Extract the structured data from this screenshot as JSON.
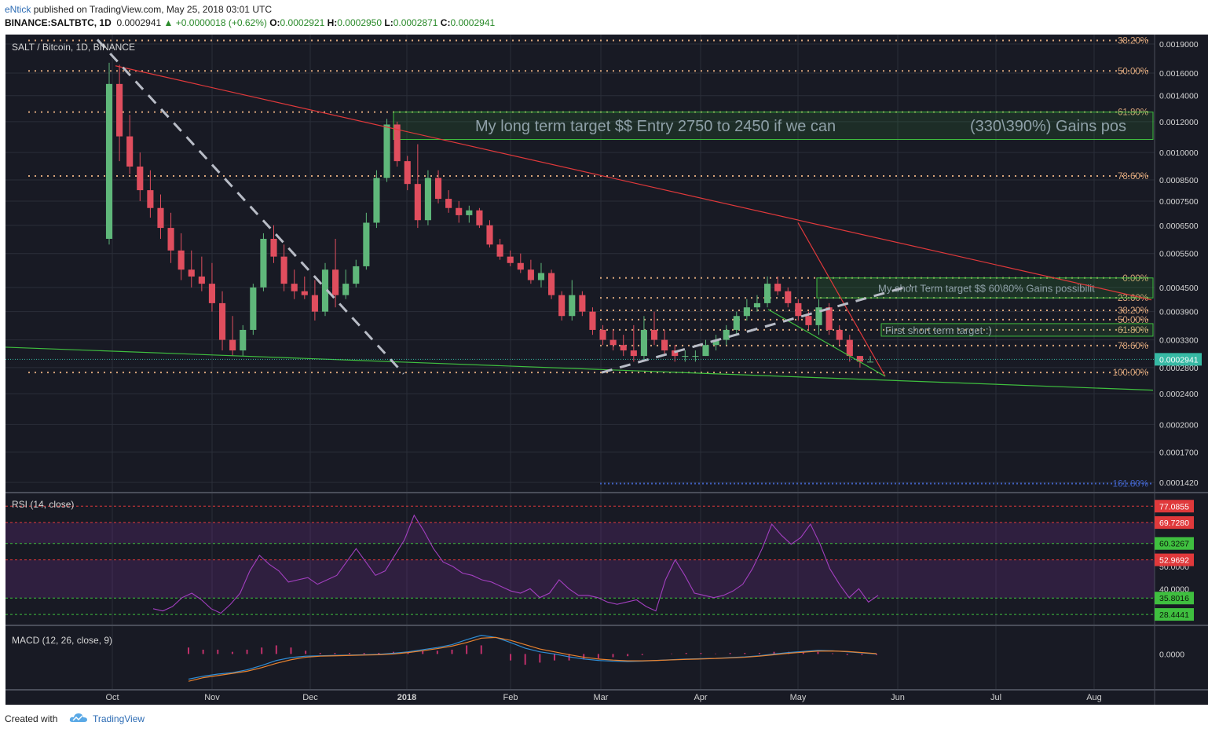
{
  "header": {
    "author": "eNtick",
    "published_text": "published on TradingView.com, May 25, 2018 03:01 UTC",
    "symbol": "BINANCE:SALTBTC, 1D",
    "last": "0.0002941",
    "change": "+0.0000018 (+0.62%)",
    "o_label": "O:",
    "o": "0.0002921",
    "h_label": "H:",
    "h": "0.0002950",
    "l_label": "L:",
    "l": "0.0002871",
    "c_label": "C:",
    "c": "0.0002941"
  },
  "footer": {
    "created_with": "Created with",
    "brand": "TradingView"
  },
  "colors": {
    "background": "#181a24",
    "grid": "#2a2e39",
    "candle_up": "#5fb77a",
    "candle_down": "#e04e5e",
    "fib_line": "#d8a47a",
    "trend_red": "#e0393b",
    "trend_green": "#3fbf3f",
    "target_box": "#3fbf3f",
    "rsi_line": "#a23fbf",
    "macd_line": "#2f8ed6",
    "signal_line": "#e8822f",
    "histogram": "#c0306a"
  },
  "chart_data": [
    {
      "type": "candlestick",
      "title": "SALT / Bitcoin, 1D, BINANCE",
      "x_ticks": [
        "Oct",
        "Nov",
        "Dec",
        "2018",
        "Feb",
        "Mar",
        "Apr",
        "May",
        "Jun",
        "Jul",
        "Aug"
      ],
      "y_scale": "log",
      "y_ticks": [
        "0.0019000",
        "0.0016000",
        "0.0014000",
        "0.0012000",
        "0.0010000",
        "0.0008500",
        "0.0007500",
        "0.0006500",
        "0.0005500",
        "0.0004500",
        "0.0003900",
        "0.0003300",
        "0.0002800",
        "0.0002400",
        "0.0002000",
        "0.0001700",
        "0.0001420"
      ],
      "last_price_label": "0.0002941",
      "fib_left": [
        {
          "label": "38.20%",
          "price": 0.00194
        },
        {
          "label": "50.00%",
          "price": 0.00162
        },
        {
          "label": "61.80%",
          "price": 0.00127
        },
        {
          "label": "78.60%",
          "price": 0.00087
        },
        {
          "label": "100.00%",
          "price": 0.000272
        }
      ],
      "fib_right": [
        {
          "label": "0.00%",
          "price": 0.000476
        },
        {
          "label": "23.60%",
          "price": 0.000423
        },
        {
          "label": "38.20%",
          "price": 0.000393
        },
        {
          "label": "50.00%",
          "price": 0.000372
        },
        {
          "label": "61.80%",
          "price": 0.00035
        },
        {
          "label": "78.60%",
          "price": 0.000319
        },
        {
          "label": "161.80%",
          "price": 0.000141
        }
      ],
      "annotations": {
        "long_term": "My long term target  $$ Entry 2750 to 2450 if we can",
        "long_term_gains": "(330\\390%) Gains pos",
        "short_term": "My short Term target  $$ 60\\80% Gains possibilit",
        "first_short": "First short term target :)"
      },
      "ohlc": [
        [
          0.0006,
          0.0017,
          0.00058,
          0.0015
        ],
        [
          0.0015,
          0.00168,
          0.00095,
          0.0011
        ],
        [
          0.0011,
          0.00125,
          0.00088,
          0.00092
        ],
        [
          0.00092,
          0.001,
          0.00075,
          0.0008
        ],
        [
          0.0008,
          0.0009,
          0.00068,
          0.00072
        ],
        [
          0.00072,
          0.00078,
          0.0006,
          0.00064
        ],
        [
          0.00064,
          0.0007,
          0.00052,
          0.00056
        ],
        [
          0.00056,
          0.00062,
          0.00047,
          0.0005
        ],
        [
          0.0005,
          0.00056,
          0.00045,
          0.00048
        ],
        [
          0.00048,
          0.00054,
          0.00044,
          0.00046
        ],
        [
          0.00046,
          0.00052,
          0.00039,
          0.00041
        ],
        [
          0.00041,
          0.00044,
          0.00031,
          0.00033
        ],
        [
          0.00033,
          0.00038,
          0.0003,
          0.00031
        ],
        [
          0.00031,
          0.00036,
          0.0003,
          0.00035
        ],
        [
          0.00035,
          0.00046,
          0.00034,
          0.00045
        ],
        [
          0.00045,
          0.00062,
          0.00044,
          0.0006
        ],
        [
          0.0006,
          0.00065,
          0.00052,
          0.00054
        ],
        [
          0.00054,
          0.00058,
          0.00044,
          0.00046
        ],
        [
          0.00046,
          0.0005,
          0.00042,
          0.00044
        ],
        [
          0.00044,
          0.00048,
          0.00042,
          0.00043
        ],
        [
          0.00043,
          0.00047,
          0.00037,
          0.00039
        ],
        [
          0.00039,
          0.00052,
          0.00038,
          0.0005
        ],
        [
          0.0005,
          0.0006,
          0.0004,
          0.00043
        ],
        [
          0.00043,
          0.0005,
          0.00042,
          0.00046
        ],
        [
          0.00046,
          0.00053,
          0.00045,
          0.00051
        ],
        [
          0.00051,
          0.0007,
          0.0005,
          0.00066
        ],
        [
          0.00066,
          0.0009,
          0.00064,
          0.00086
        ],
        [
          0.00086,
          0.00122,
          0.00084,
          0.00118
        ],
        [
          0.00118,
          0.0012,
          0.00092,
          0.00095
        ],
        [
          0.00095,
          0.00098,
          0.0008,
          0.00083
        ],
        [
          0.00083,
          0.00105,
          0.00064,
          0.00067
        ],
        [
          0.00067,
          0.0009,
          0.00065,
          0.00086
        ],
        [
          0.00086,
          0.0009,
          0.00074,
          0.00076
        ],
        [
          0.00076,
          0.0008,
          0.0007,
          0.00072
        ],
        [
          0.00072,
          0.00075,
          0.00066,
          0.00069
        ],
        [
          0.00069,
          0.00073,
          0.00066,
          0.00071
        ],
        [
          0.00071,
          0.00072,
          0.00064,
          0.00065
        ],
        [
          0.00065,
          0.00067,
          0.00057,
          0.00058
        ],
        [
          0.00058,
          0.0006,
          0.00053,
          0.00054
        ],
        [
          0.00054,
          0.00056,
          0.00051,
          0.00052
        ],
        [
          0.00052,
          0.00055,
          0.00049,
          0.0005
        ],
        [
          0.0005,
          0.00053,
          0.00046,
          0.00047
        ],
        [
          0.00047,
          0.00052,
          0.00045,
          0.00049
        ],
        [
          0.00049,
          0.0005,
          0.00042,
          0.00043
        ],
        [
          0.00043,
          0.00044,
          0.00037,
          0.00038
        ],
        [
          0.00038,
          0.00047,
          0.00037,
          0.00043
        ],
        [
          0.00043,
          0.00044,
          0.00038,
          0.00039
        ],
        [
          0.00039,
          0.0004,
          0.00034,
          0.00035
        ],
        [
          0.00035,
          0.00036,
          0.00032,
          0.00033
        ],
        [
          0.00033,
          0.00035,
          0.00031,
          0.00032
        ],
        [
          0.00032,
          0.00034,
          0.0003,
          0.00031
        ],
        [
          0.00031,
          0.00036,
          0.00029,
          0.0003
        ],
        [
          0.0003,
          0.00038,
          0.00029,
          0.00035
        ],
        [
          0.00035,
          0.00039,
          0.00032,
          0.00033
        ],
        [
          0.00033,
          0.00035,
          0.0003,
          0.00031
        ],
        [
          0.00031,
          0.00032,
          0.00029,
          0.0003
        ],
        [
          0.0003,
          0.00031,
          0.00029,
          0.0003
        ],
        [
          0.0003,
          0.00031,
          0.00029,
          0.0003
        ],
        [
          0.0003,
          0.00033,
          0.0003,
          0.00032
        ],
        [
          0.00032,
          0.00034,
          0.00031,
          0.00033
        ],
        [
          0.00033,
          0.00036,
          0.00032,
          0.00035
        ],
        [
          0.00035,
          0.00039,
          0.00034,
          0.00038
        ],
        [
          0.00038,
          0.00042,
          0.00037,
          0.0004
        ],
        [
          0.0004,
          0.00043,
          0.00039,
          0.00041
        ],
        [
          0.00041,
          0.00048,
          0.0004,
          0.00046
        ],
        [
          0.00046,
          0.00048,
          0.00043,
          0.00044
        ],
        [
          0.00044,
          0.00045,
          0.0004,
          0.00041
        ],
        [
          0.00041,
          0.00042,
          0.00037,
          0.00038
        ],
        [
          0.00038,
          0.00039,
          0.00035,
          0.00036
        ],
        [
          0.00036,
          0.00042,
          0.00034,
          0.0004
        ],
        [
          0.0004,
          0.00041,
          0.00034,
          0.00035
        ],
        [
          0.00035,
          0.00036,
          0.00032,
          0.00033
        ],
        [
          0.00033,
          0.00034,
          0.00029,
          0.0003
        ],
        [
          0.0003,
          0.0003,
          0.00028,
          0.00029
        ],
        [
          0.00029,
          0.0003,
          0.00029,
          0.00029
        ]
      ]
    },
    {
      "type": "line",
      "title": "RSI (14, close)",
      "levels": [
        {
          "label": "77.0855",
          "value": 77.0855,
          "color": "#e0393b"
        },
        {
          "label": "69.7280",
          "value": 69.728,
          "color": "#e0393b"
        },
        {
          "label": "60.3267",
          "value": 60.3267,
          "color": "#3fbf3f"
        },
        {
          "label": "52.9692",
          "value": 52.9692,
          "color": "#e0393b"
        },
        {
          "label": "35.8016",
          "value": 35.8016,
          "color": "#3fbf3f"
        },
        {
          "label": "28.4441",
          "value": 28.4441,
          "color": "#3fbf3f"
        }
      ],
      "y_ticks": [
        "50.0000",
        "40.0000"
      ],
      "values": [
        31,
        30,
        32,
        36,
        38,
        35,
        31,
        29,
        33,
        38,
        48,
        55,
        51,
        48,
        43,
        44,
        45,
        42,
        44,
        46,
        52,
        58,
        52,
        46,
        48,
        55,
        62,
        73,
        66,
        58,
        52,
        50,
        47,
        46,
        44,
        43,
        41,
        39,
        38,
        40,
        36,
        38,
        44,
        40,
        37,
        37,
        36,
        34,
        33,
        34,
        35,
        32,
        30,
        44,
        53,
        46,
        38,
        37,
        36,
        37,
        39,
        42,
        49,
        58,
        69,
        64,
        60,
        63,
        69,
        60,
        49,
        42,
        36,
        40,
        34,
        37
      ]
    },
    {
      "type": "line",
      "title": "MACD (12, 26, close, 9)",
      "y_ticks": [
        "0.0000"
      ],
      "macd": [
        -3.5,
        -3.1,
        -2.8,
        -2.6,
        -2.2,
        -1.6,
        -0.9,
        -0.5,
        -0.3,
        -0.25,
        -0.2,
        -0.15,
        -0.1,
        -0.05,
        0.1,
        0.3,
        0.6,
        0.9,
        1.3,
        2.0,
        2.6,
        2.3,
        1.6,
        0.8,
        0.3,
        0,
        -0.4,
        -0.7,
        -0.9,
        -1.0,
        -1.05,
        -1.0,
        -0.9,
        -0.8,
        -0.7,
        -0.65,
        -0.6,
        -0.5,
        -0.4,
        -0.25,
        0,
        0.2,
        0.35,
        0.5,
        0.45,
        0.3,
        0.15,
        0
      ],
      "signal": [
        -3.8,
        -3.3,
        -3.0,
        -2.7,
        -2.4,
        -1.9,
        -1.3,
        -0.8,
        -0.45,
        -0.3,
        -0.25,
        -0.2,
        -0.15,
        -0.1,
        0,
        0.2,
        0.45,
        0.75,
        1.1,
        1.6,
        2.2,
        2.3,
        1.9,
        1.3,
        0.7,
        0.3,
        -0.1,
        -0.45,
        -0.7,
        -0.85,
        -0.95,
        -0.95,
        -0.9,
        -0.82,
        -0.75,
        -0.7,
        -0.62,
        -0.55,
        -0.45,
        -0.3,
        -0.1,
        0.1,
        0.25,
        0.4,
        0.42,
        0.35,
        0.2,
        0.05
      ]
    }
  ]
}
